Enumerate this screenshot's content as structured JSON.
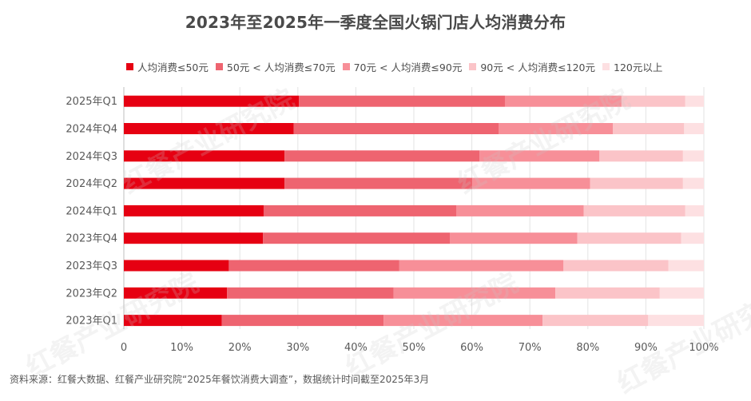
{
  "chart_data": {
    "type": "bar",
    "orientation": "horizontal",
    "stacked": true,
    "percent_stacked": true,
    "title": "2023年至2025年一季度全国火锅门店人均消费分布",
    "categories": [
      "2025年Q1",
      "2024年Q4",
      "2024年Q3",
      "2024年Q2",
      "2024年Q1",
      "2023年Q4",
      "2023年Q3",
      "2023年Q2",
      "2023年Q1"
    ],
    "series": [
      {
        "name": "人均消费≤50元",
        "color": "#e60012",
        "values": [
          30.2,
          29.3,
          27.7,
          27.7,
          24.1,
          24.0,
          18.1,
          17.8,
          16.9
        ]
      },
      {
        "name": "50元 < 人均消费≤70元",
        "color": "#ee6470",
        "values": [
          35.5,
          35.3,
          33.6,
          32.4,
          33.2,
          32.2,
          29.4,
          28.7,
          27.9
        ]
      },
      {
        "name": "70元 < 人均消费≤90元",
        "color": "#f78f98",
        "values": [
          20.1,
          19.7,
          20.7,
          20.3,
          22.0,
          22.0,
          28.3,
          27.9,
          27.4
        ]
      },
      {
        "name": "90元 < 人均消费≤120元",
        "color": "#fbc4c8",
        "values": [
          11.0,
          12.3,
          14.4,
          16.0,
          17.5,
          17.9,
          18.1,
          18.0,
          18.2
        ]
      },
      {
        "name": "120元以上",
        "color": "#fde0e2",
        "values": [
          3.2,
          3.4,
          3.6,
          3.6,
          3.2,
          3.9,
          6.1,
          7.6,
          9.6
        ]
      }
    ],
    "xlim": [
      0,
      100
    ],
    "xticks": [
      "0",
      "10%",
      "20%",
      "30%",
      "40%",
      "50%",
      "60%",
      "70%",
      "80%",
      "90%",
      "100%"
    ],
    "xlabel": "",
    "ylabel": "",
    "grid": true,
    "legend_position": "top"
  },
  "footer": {
    "source": "资料来源：红餐大数据、红餐产业研究院“2025年餐饮消费大调查”，数据统计时间截至2025年3月"
  },
  "watermark": {
    "text": "红餐产业研究院"
  }
}
